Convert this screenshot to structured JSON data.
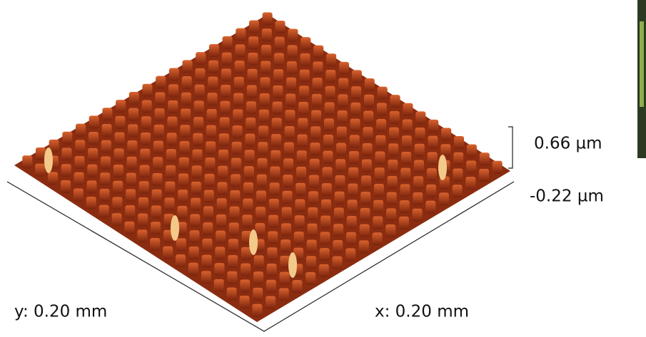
{
  "scale": {
    "z_max": "0.66 µm",
    "z_min": "-0.22 µm"
  },
  "axes": {
    "y": "y: 0.20 mm",
    "x": "x: 0.20 mm"
  }
}
